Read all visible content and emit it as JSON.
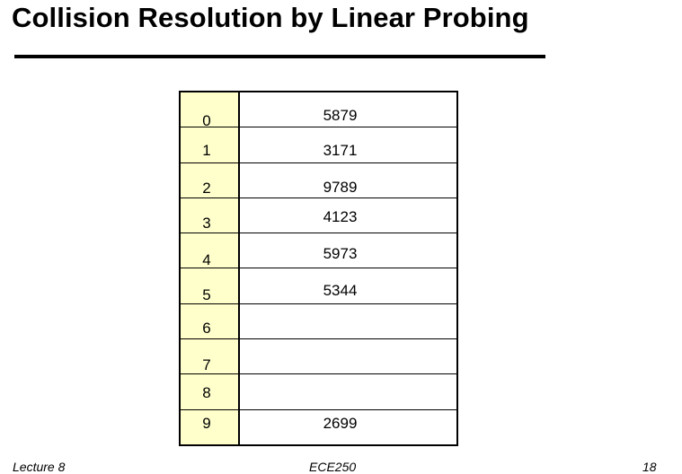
{
  "slide": {
    "title": "Collision Resolution by Linear Probing"
  },
  "table": {
    "rows": [
      {
        "index": "0",
        "value": "5879"
      },
      {
        "index": "1",
        "value": "3171"
      },
      {
        "index": "2",
        "value": "9789"
      },
      {
        "index": "3",
        "value": "4123"
      },
      {
        "index": "4",
        "value": "5973"
      },
      {
        "index": "5",
        "value": "5344"
      },
      {
        "index": "6",
        "value": ""
      },
      {
        "index": "7",
        "value": ""
      },
      {
        "index": "8",
        "value": ""
      },
      {
        "index": "9",
        "value": "2699"
      }
    ]
  },
  "footer": {
    "left": "Lecture 8",
    "center": "ECE250",
    "right": "18"
  }
}
